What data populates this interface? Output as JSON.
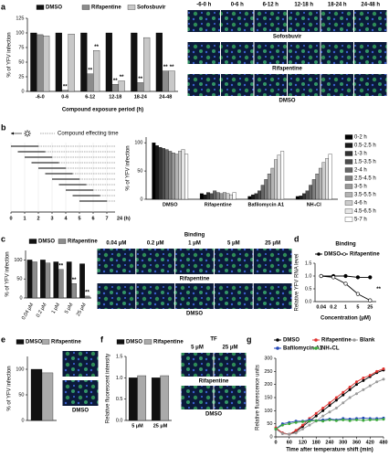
{
  "panel_labels": [
    "a",
    "b",
    "c",
    "d",
    "e",
    "f",
    "g"
  ],
  "chart_data": [
    {
      "type": "bar",
      "categories": [
        "-6-0",
        "0-6",
        "6-12",
        "12-18",
        "18-24",
        "24-48"
      ],
      "series": [
        {
          "name": "DMSO",
          "color": "#111111",
          "values": [
            100,
            100,
            100,
            100,
            100,
            100
          ]
        },
        {
          "name": "Rifapentine",
          "color": "#8c8c8c",
          "values": [
            97,
            2,
            30,
            12,
            15,
            35
          ]
        },
        {
          "name": "Sofosbuvir",
          "color": "#c8c8c8",
          "values": [
            95,
            98,
            70,
            18,
            92,
            35
          ]
        }
      ],
      "ylim": [
        0,
        125
      ],
      "yticks": [
        0,
        25,
        50,
        75,
        100,
        125
      ],
      "xlabel": "Compound exposure period (h)",
      "ylabel": "% of YFV infection",
      "annotations": [
        {
          "text": "**",
          "category": "0-6",
          "series": "Rifapentine"
        },
        {
          "text": "**",
          "category": "6-12",
          "series": "Rifapentine"
        },
        {
          "text": "**",
          "category": "6-12",
          "series": "Sofosbuvir"
        },
        {
          "text": "**",
          "category": "12-18",
          "series": "Rifapentine"
        },
        {
          "text": "**",
          "category": "12-18",
          "series": "Sofosbuvir"
        },
        {
          "text": "**",
          "category": "18-24",
          "series": "Rifapentine"
        },
        {
          "text": "**",
          "category": "24-48",
          "series": "Rifapentine"
        },
        {
          "text": "**",
          "category": "24-48",
          "series": "Sofosbuvir"
        }
      ]
    },
    {
      "type": "timeline",
      "xlim": [
        0,
        7.6
      ],
      "xticks": [
        0,
        1,
        2,
        3,
        4,
        5,
        6,
        7
      ],
      "end_label": "24 (h)",
      "legend": "Compound effecting time",
      "intervals": [
        [
          0,
          2
        ],
        [
          0.5,
          2.5
        ],
        [
          1,
          3
        ],
        [
          1.5,
          3.5
        ],
        [
          2,
          4
        ],
        [
          2.5,
          4.5
        ],
        [
          3,
          5
        ],
        [
          3.5,
          5.5
        ],
        [
          4,
          6
        ],
        [
          4.5,
          6.5
        ],
        [
          5,
          7
        ]
      ]
    },
    {
      "type": "bar",
      "categories": [
        "DMSO",
        "Rifapentine",
        "Bafilomycin A1",
        "NH₄Cl"
      ],
      "series": [
        {
          "name": "0-2 h",
          "color": "#000000",
          "values": [
            100,
            10,
            5,
            5
          ]
        },
        {
          "name": "0.5-2.5 h",
          "color": "#1a1a1a",
          "values": [
            95,
            8,
            8,
            6
          ]
        },
        {
          "name": "1-3 h",
          "color": "#333333",
          "values": [
            92,
            12,
            10,
            10
          ]
        },
        {
          "name": "1.5-3.5 h",
          "color": "#4d4d4d",
          "values": [
            90,
            10,
            15,
            15
          ]
        },
        {
          "name": "2-4 h",
          "color": "#666666",
          "values": [
            88,
            15,
            25,
            25
          ]
        },
        {
          "name": "2.5-4.5 h",
          "color": "#808080",
          "values": [
            85,
            12,
            35,
            35
          ]
        },
        {
          "name": "3-5 h",
          "color": "#999999",
          "values": [
            82,
            10,
            45,
            45
          ]
        },
        {
          "name": "3.5-5.5 h",
          "color": "#b3b3b3",
          "values": [
            80,
            12,
            55,
            55
          ]
        },
        {
          "name": "4-6 h",
          "color": "#cccccc",
          "values": [
            85,
            10,
            70,
            65
          ]
        },
        {
          "name": "4.5-6.5 h",
          "color": "#e6e6e6",
          "values": [
            88,
            8,
            78,
            72
          ]
        },
        {
          "name": "5-7 h",
          "color": "#ffffff",
          "values": [
            80,
            12,
            85,
            80
          ]
        }
      ],
      "ylim": [
        0,
        110
      ],
      "yticks": [
        0,
        50,
        100
      ],
      "ylabel": "% of YFV infection"
    },
    {
      "type": "bar",
      "categories": [
        "0.04 μM",
        "0.2 μM",
        "1 μM",
        "5 μM",
        "25 μM"
      ],
      "series": [
        {
          "name": "DMSO",
          "color": "#111111",
          "values": [
            100,
            100,
            95,
            95,
            90
          ]
        },
        {
          "name": "Rifapentine",
          "color": "#8c8c8c",
          "values": [
            95,
            92,
            75,
            38,
            5
          ]
        }
      ],
      "ylim": [
        0,
        125
      ],
      "yticks": [
        0,
        50,
        100
      ],
      "ylabel": "% of YFV infection",
      "annotations": [
        {
          "text": "**",
          "category": "1 μM",
          "series": "Rifapentine"
        },
        {
          "text": "**",
          "category": "5 μM",
          "series": "Rifapentine"
        },
        {
          "text": "**",
          "category": "25 μM",
          "series": "Rifapentine"
        }
      ]
    },
    {
      "type": "line",
      "title": "Binding",
      "categories": [
        "0.04",
        "0.2",
        "1",
        "5",
        "25"
      ],
      "series": [
        {
          "name": "DMSO",
          "color": "#000000",
          "values": [
            1.0,
            1.0,
            1.0,
            0.95,
            0.95
          ]
        },
        {
          "name": "Rifapentine",
          "color": "#000000",
          "values": [
            1.0,
            0.95,
            0.7,
            0.3,
            0.05
          ]
        }
      ],
      "ylim": [
        0,
        1.5
      ],
      "yticks": [
        {
          "value": 0,
          "label": "0.0"
        },
        0.5,
        {
          "value": 1,
          "label": "1.0"
        },
        1.5
      ],
      "xlabel": "Concentration (μM)",
      "ylabel": "Relative YFV RNA level",
      "annotations": [
        {
          "text": "**",
          "category": "25",
          "series": "Rifapentine"
        }
      ]
    },
    {
      "type": "bar",
      "categories": [
        null
      ],
      "series": [
        {
          "name": "DMSO",
          "color": "#111111",
          "values": [
            100
          ]
        },
        {
          "name": "Rifapentine",
          "color": "#aaaaaa",
          "values": [
            93
          ]
        }
      ],
      "ylim": [
        0,
        125
      ],
      "yticks": [
        0,
        50,
        100
      ],
      "ylabel": "% of YFV infection"
    },
    {
      "type": "bar",
      "categories": [
        "5 μM",
        "25 μM"
      ],
      "series": [
        {
          "name": "DMSO",
          "color": "#111111",
          "values": [
            1.0,
            1.0
          ]
        },
        {
          "name": "Rifapentine",
          "color": "#aaaaaa",
          "values": [
            1.05,
            1.05
          ]
        }
      ],
      "ylim": [
        0,
        1.5
      ],
      "yticks": [
        {
          "value": 0,
          "label": "0.0"
        },
        0.5,
        {
          "value": 1,
          "label": "1.0"
        },
        1.5
      ],
      "ylabel": "Relative fluorescent intensity"
    },
    {
      "type": "line",
      "x": [
        0,
        30,
        60,
        90,
        120,
        150,
        180,
        210,
        240,
        270,
        300,
        330,
        360,
        390,
        420,
        450,
        480
      ],
      "series": [
        {
          "name": "DMSO",
          "color": "#000000",
          "values": [
            30,
            15,
            10,
            20,
            40,
            60,
            80,
            100,
            120,
            140,
            160,
            180,
            200,
            215,
            230,
            245,
            255
          ]
        },
        {
          "name": "Rifapentine",
          "color": "#e0322f",
          "values": [
            35,
            15,
            10,
            25,
            45,
            70,
            90,
            110,
            130,
            150,
            170,
            190,
            210,
            225,
            235,
            250,
            260
          ]
        },
        {
          "name": "Blank",
          "color": "#9a9a9a",
          "values": [
            30,
            12,
            10,
            15,
            30,
            45,
            60,
            80,
            95,
            110,
            130,
            150,
            165,
            180,
            195,
            210,
            220
          ]
        },
        {
          "name": "Bafilomycin A1",
          "color": "#2447b8",
          "values": [
            30,
            50,
            55,
            60,
            60,
            65,
            62,
            65,
            68,
            65,
            70,
            68,
            70,
            72,
            70,
            70,
            72
          ]
        },
        {
          "name": "NH₄CL",
          "color": "#3aa83a",
          "values": [
            30,
            45,
            50,
            55,
            58,
            60,
            62,
            60,
            65,
            62,
            65,
            62,
            65,
            63,
            65,
            65,
            67
          ]
        }
      ],
      "xlim": [
        0,
        480
      ],
      "xticks": [
        0,
        60,
        120,
        180,
        240,
        300,
        360,
        420,
        480
      ],
      "ylim": [
        0,
        300
      ],
      "yticks": [
        0,
        50,
        100,
        150,
        200,
        250,
        300
      ],
      "xlabel": "Time after temperature shift (min)",
      "ylabel": "Relative fluorescence units"
    }
  ],
  "micrographs": [
    {
      "columns": [
        "-6-0 h",
        "0-6 h",
        "6-12 h",
        "12-18 h",
        "18-24 h",
        "24-48 h"
      ],
      "rows": [
        "Sofosbuvir",
        "Rifapentine",
        "DMSO"
      ]
    },
    {
      "title": "Binding",
      "columns": [
        "0.04 μM",
        "0.2 μM",
        "1 μM",
        "5 μM",
        "25 μM"
      ],
      "rows": [
        "Rifapentine",
        "DMSO"
      ]
    },
    {
      "rows": [
        null,
        "DMSO"
      ]
    },
    {
      "title": "TF",
      "columns": [
        "5 μM",
        "25 μM"
      ],
      "rows": [
        "Rifapentine",
        "DMSO"
      ]
    }
  ]
}
